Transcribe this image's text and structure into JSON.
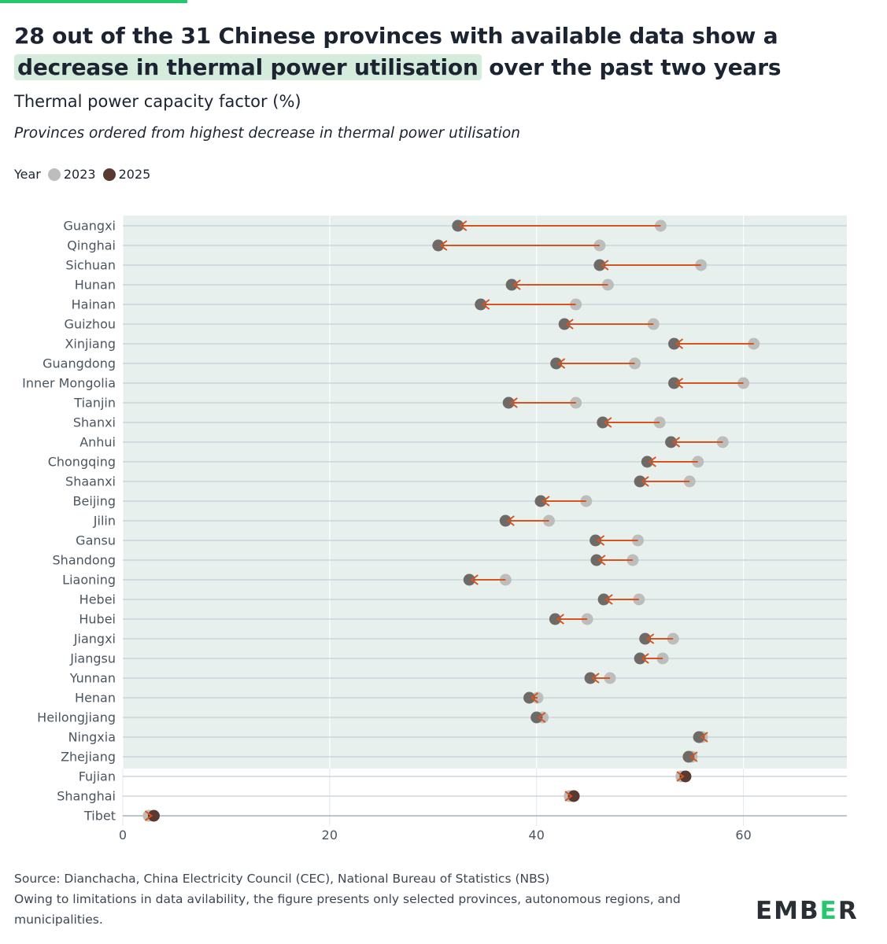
{
  "title": {
    "line1": "28 out of the 31 Chinese provinces with available data show a",
    "highlight": "decrease in thermal power utilisation",
    "line2_rest": "over the past two years"
  },
  "subtitle": "Thermal power capacity factor (%)",
  "note": "Provinces ordered from highest decrease in thermal power utilisation",
  "legend": {
    "label": "Year",
    "items": [
      "2023",
      "2025"
    ]
  },
  "colors": {
    "dot_2023": "#bdbdbb",
    "dot_2025_decrease": "#6e6a67",
    "dot_2025_increase": "#5a3a30",
    "arrow": "#d9531e",
    "panel_bg": "#e8f0ed",
    "grid": "#c4ced8",
    "accent": "#28c76f"
  },
  "chart_data": {
    "type": "dumbbell",
    "title": "Thermal power capacity factor (%)",
    "xlabel": "",
    "ylabel": "",
    "xlim": [
      0,
      70
    ],
    "x_ticks": [
      0,
      20,
      40,
      60
    ],
    "series": [
      {
        "name": "2023"
      },
      {
        "name": "2025"
      }
    ],
    "shaded_decrease_rows": 28,
    "rows": [
      {
        "province": "Guangxi",
        "y2023": 52.0,
        "y2025": 32.4
      },
      {
        "province": "Qinghai",
        "y2023": 46.1,
        "y2025": 30.5
      },
      {
        "province": "Sichuan",
        "y2023": 55.9,
        "y2025": 46.1
      },
      {
        "province": "Hunan",
        "y2023": 46.9,
        "y2025": 37.6
      },
      {
        "province": "Hainan",
        "y2023": 43.8,
        "y2025": 34.6
      },
      {
        "province": "Guizhou",
        "y2023": 51.3,
        "y2025": 42.7
      },
      {
        "province": "Xinjiang",
        "y2023": 61.0,
        "y2025": 53.3
      },
      {
        "province": "Guangdong",
        "y2023": 49.5,
        "y2025": 41.9
      },
      {
        "province": "Inner Mongolia",
        "y2023": 60.0,
        "y2025": 53.3
      },
      {
        "province": "Tianjin",
        "y2023": 43.8,
        "y2025": 37.3
      },
      {
        "province": "Shanxi",
        "y2023": 51.9,
        "y2025": 46.4
      },
      {
        "province": "Anhui",
        "y2023": 58.0,
        "y2025": 53.0
      },
      {
        "province": "Chongqing",
        "y2023": 55.6,
        "y2025": 50.7
      },
      {
        "province": "Shaanxi",
        "y2023": 54.8,
        "y2025": 50.0
      },
      {
        "province": "Beijing",
        "y2023": 44.8,
        "y2025": 40.4
      },
      {
        "province": "Jilin",
        "y2023": 41.2,
        "y2025": 37.0
      },
      {
        "province": "Gansu",
        "y2023": 49.8,
        "y2025": 45.7
      },
      {
        "province": "Shandong",
        "y2023": 49.3,
        "y2025": 45.8
      },
      {
        "province": "Liaoning",
        "y2023": 37.0,
        "y2025": 33.5
      },
      {
        "province": "Hebei",
        "y2023": 49.9,
        "y2025": 46.5
      },
      {
        "province": "Hubei",
        "y2023": 44.9,
        "y2025": 41.8
      },
      {
        "province": "Jiangxi",
        "y2023": 53.2,
        "y2025": 50.5
      },
      {
        "province": "Jiangsu",
        "y2023": 52.2,
        "y2025": 50.0
      },
      {
        "province": "Yunnan",
        "y2023": 47.1,
        "y2025": 45.2
      },
      {
        "province": "Henan",
        "y2023": 40.1,
        "y2025": 39.3
      },
      {
        "province": "Heilongjiang",
        "y2023": 40.6,
        "y2025": 40.0
      },
      {
        "province": "Ningxia",
        "y2023": 56.0,
        "y2025": 55.7
      },
      {
        "province": "Zhejiang",
        "y2023": 55.0,
        "y2025": 54.7
      },
      {
        "province": "Fujian",
        "y2023": 54.0,
        "y2025": 54.4
      },
      {
        "province": "Shanghai",
        "y2023": 43.2,
        "y2025": 43.6
      },
      {
        "province": "Tibet",
        "y2023": 2.5,
        "y2025": 3.0
      }
    ]
  },
  "footer": {
    "source": "Source: Dianchacha, China Electricity Council (CEC), National Bureau of Statistics (NBS)",
    "caveat": "Owing to limitations in data avilability, the figure presents only selected provinces, autonomous regions, and municipalities."
  },
  "logo": {
    "a": "EMB",
    "b": "E",
    "c": "R"
  }
}
